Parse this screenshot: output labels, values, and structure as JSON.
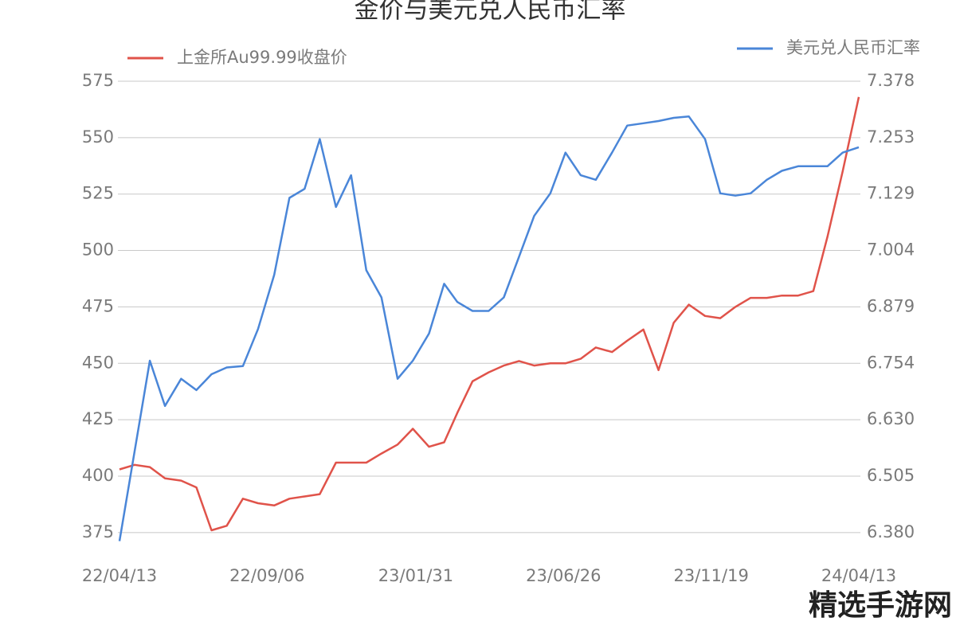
{
  "chart_data": {
    "type": "line",
    "title": "金价与美元兑人民币汇率",
    "x": [
      "22/04/13",
      "22/04/28",
      "22/05/13",
      "22/05/28",
      "22/06/13",
      "22/06/28",
      "22/07/13",
      "22/07/28",
      "22/08/13",
      "22/08/28",
      "22/09/13",
      "22/09/28",
      "22/10/13",
      "22/10/28",
      "22/11/13",
      "22/11/28",
      "22/12/13",
      "22/12/28",
      "23/01/13",
      "23/01/28",
      "23/02/13",
      "23/02/28",
      "23/03/13",
      "23/03/28",
      "23/04/13",
      "23/04/28",
      "23/05/13",
      "23/05/28",
      "23/06/13",
      "23/06/28",
      "23/07/13",
      "23/07/28",
      "23/08/13",
      "23/08/28",
      "23/09/13",
      "23/09/28",
      "23/10/13",
      "23/10/28",
      "23/11/13",
      "23/11/28",
      "23/12/13",
      "23/12/28",
      "24/01/13",
      "24/01/28",
      "24/02/13",
      "24/02/28",
      "24/03/13",
      "24/03/28",
      "24/04/13"
    ],
    "series": [
      {
        "name": "上金所Au99.99收盘价",
        "color": "#e0534a",
        "axis": "y",
        "values": [
          403,
          405,
          404,
          399,
          398,
          395,
          376,
          378,
          390,
          388,
          387,
          390,
          391,
          392,
          406,
          406,
          406,
          410,
          414,
          421,
          413,
          415,
          428,
          442,
          446,
          449,
          451,
          449,
          450,
          450,
          452,
          457,
          455,
          460,
          465,
          447,
          468,
          476,
          471,
          470,
          475,
          479,
          479,
          480,
          480,
          482,
          506,
          535,
          568
        ]
      },
      {
        "name": "美元兑人民币汇率",
        "color": "#4a86d8",
        "axis": "y2",
        "values": [
          6.361,
          6.56,
          6.76,
          6.66,
          6.72,
          6.695,
          6.73,
          6.745,
          6.748,
          6.83,
          6.95,
          7.12,
          7.14,
          7.25,
          7.1,
          7.17,
          6.96,
          6.9,
          6.72,
          6.76,
          6.82,
          6.93,
          6.89,
          6.87,
          6.87,
          6.9,
          6.99,
          7.08,
          7.13,
          7.22,
          7.17,
          7.16,
          7.22,
          7.28,
          7.285,
          7.29,
          7.297,
          7.3,
          7.25,
          7.13,
          7.125,
          7.13,
          7.16,
          7.18,
          7.19,
          7.19,
          7.19,
          7.22,
          7.232
        ]
      }
    ],
    "xlim": [
      "22/04/13",
      "24/04/13"
    ],
    "xticks": [
      "22/04/13",
      "22/09/06",
      "23/01/31",
      "23/06/26",
      "23/11/19",
      "24/04/13"
    ],
    "ylim": [
      370,
      575
    ],
    "yticks": [
      375,
      400,
      425,
      450,
      475,
      500,
      525,
      550,
      575
    ],
    "y2lim": [
      6.355,
      7.378
    ],
    "y2ticks": [
      {
        "value": 6.38,
        "label": "6.380"
      },
      6.505,
      {
        "value": 6.63,
        "label": "6.630"
      },
      6.754,
      6.879,
      7.004,
      7.129,
      7.253,
      7.378
    ],
    "grid": true,
    "watermark": "精选手游网"
  }
}
